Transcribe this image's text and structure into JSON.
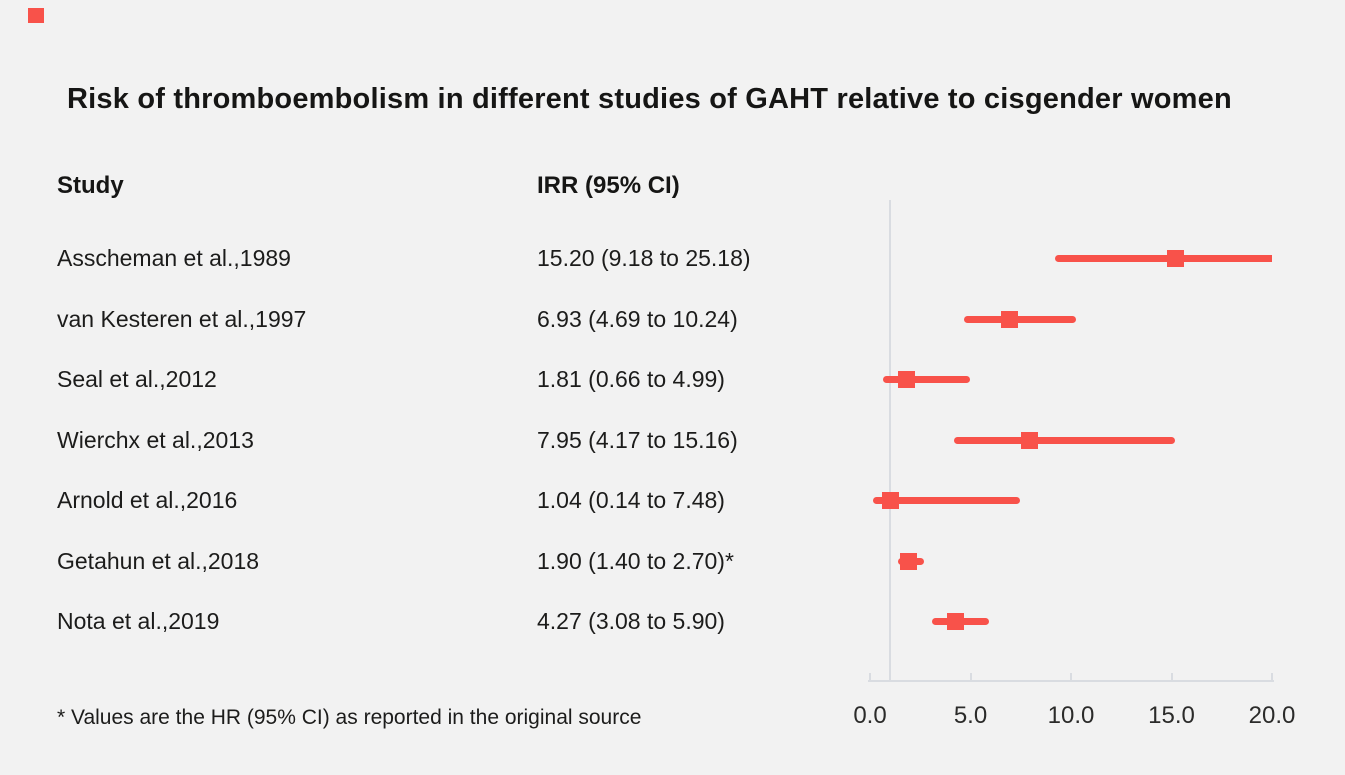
{
  "page": {
    "background_color": "#f2f2f2",
    "accent_red": "#f8524a",
    "line_gray": "#d9dce1",
    "text_color": "#1c1c1b"
  },
  "title": "Risk of thromboembolism in different studies of GAHT relative to cisgender women",
  "columns": {
    "study": "Study",
    "irr": "IRR (95% CI)"
  },
  "footnote": "* Values are the HR (95% CI) as reported in the original source",
  "chart_data": {
    "type": "forest",
    "title": "Risk of thromboembolism in different studies of GAHT relative to cisgender women",
    "xlabel": "",
    "ylabel": "",
    "xlim": [
      0,
      20
    ],
    "x_ticks": [
      0.0,
      5.0,
      10.0,
      15.0,
      20.0
    ],
    "x_tick_labels": [
      "0.0",
      "5.0",
      "10.0",
      "15.0",
      "20.0"
    ],
    "reference_line_x": 1.0,
    "grid": false,
    "legend": "none",
    "marker": "square",
    "studies": [
      {
        "label": "Asscheman et al.,1989",
        "irr_text": "15.20 (9.18 to 25.18)",
        "value": 15.2,
        "ci_low": 9.18,
        "ci_high": 25.18
      },
      {
        "label": "van Kesteren et al.,1997",
        "irr_text": "6.93 (4.69 to 10.24)",
        "value": 6.93,
        "ci_low": 4.69,
        "ci_high": 10.24
      },
      {
        "label": "Seal et al.,2012",
        "irr_text": "1.81 (0.66 to 4.99)",
        "value": 1.81,
        "ci_low": 0.66,
        "ci_high": 4.99
      },
      {
        "label": "Wierchx et al.,2013",
        "irr_text": "7.95 (4.17 to 15.16)",
        "value": 7.95,
        "ci_low": 4.17,
        "ci_high": 15.16
      },
      {
        "label": "Arnold et al.,2016",
        "irr_text": "1.04 (0.14 to 7.48)",
        "value": 1.04,
        "ci_low": 0.14,
        "ci_high": 7.48
      },
      {
        "label": "Getahun et al.,2018",
        "irr_text": "1.90 (1.40 to 2.70)*",
        "value": 1.9,
        "ci_low": 1.4,
        "ci_high": 2.7
      },
      {
        "label": "Nota et al.,2019",
        "irr_text": "4.27 (3.08 to 5.90)",
        "value": 4.27,
        "ci_low": 3.08,
        "ci_high": 5.9
      }
    ]
  }
}
